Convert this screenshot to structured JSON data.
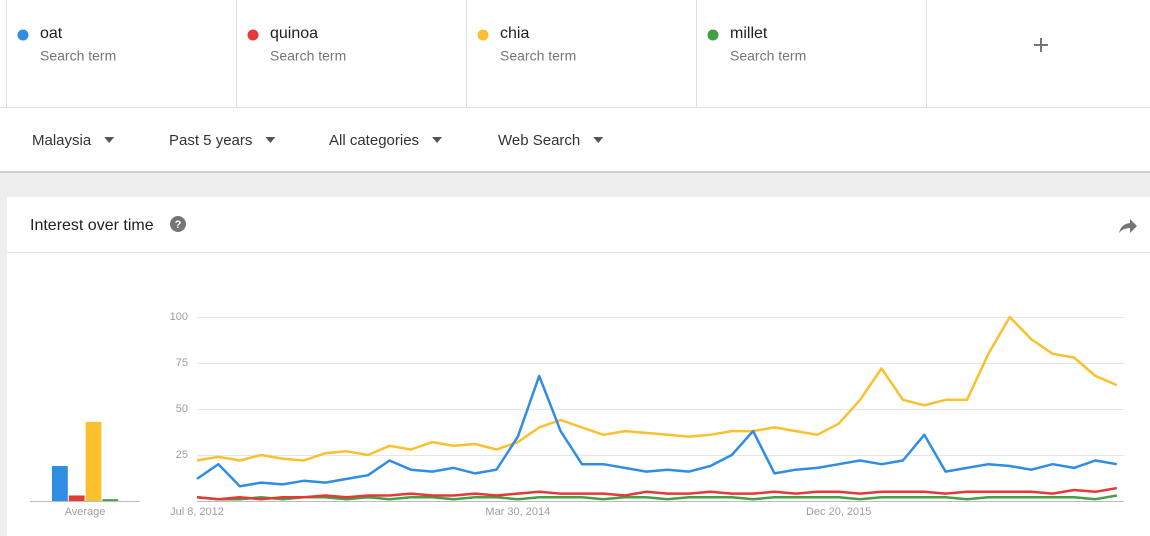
{
  "header": {
    "term_labels": [
      "Search term",
      "Search term",
      "Search term",
      "Search term"
    ]
  },
  "filters": [
    "Malaysia",
    "Past 5 years",
    "All categories",
    "Web Search"
  ],
  "card": {
    "title": "Interest over time"
  },
  "chart_data": [
    {
      "type": "bar",
      "categories": [
        "Average"
      ],
      "ylim": [
        0,
        100
      ],
      "series": [
        {
          "color": "#2f8de4",
          "values": [
            19
          ]
        },
        {
          "color": "#e53935",
          "values": [
            3
          ]
        },
        {
          "color": "#fbc02d",
          "values": [
            43
          ]
        },
        {
          "color": "#43a047",
          "values": [
            1
          ]
        }
      ]
    },
    {
      "type": "line",
      "categories": [
        "Jul 8, 2012",
        null,
        null,
        null,
        null,
        null,
        null,
        null,
        null,
        null,
        null,
        null,
        null,
        null,
        null,
        "Mar 30, 2014",
        null,
        null,
        null,
        null,
        null,
        null,
        null,
        null,
        null,
        null,
        null,
        null,
        null,
        null,
        "Dec 20, 2015",
        null,
        null,
        null,
        null,
        null,
        null,
        null,
        null,
        null,
        null,
        null,
        null,
        null
      ],
      "ylim": [
        0,
        100
      ],
      "yticks": [
        25,
        50,
        75,
        100
      ],
      "grid": true,
      "series": [
        {
          "name": "oat",
          "color": "#2f8de4",
          "values": [
            12,
            20,
            8,
            10,
            9,
            11,
            10,
            12,
            14,
            22,
            17,
            16,
            18,
            15,
            17,
            35,
            68,
            38,
            20,
            20,
            18,
            16,
            17,
            16,
            19,
            25,
            38,
            15,
            17,
            18,
            20,
            22,
            20,
            22,
            36,
            16,
            18,
            20,
            19,
            17,
            20,
            18,
            22,
            20
          ]
        },
        {
          "name": "quinoa",
          "color": "#e53935",
          "values": [
            2,
            1,
            2,
            1,
            2,
            2,
            3,
            2,
            3,
            3,
            4,
            3,
            3,
            4,
            3,
            4,
            5,
            4,
            4,
            4,
            3,
            5,
            4,
            4,
            5,
            4,
            4,
            5,
            4,
            5,
            5,
            4,
            5,
            5,
            5,
            4,
            5,
            5,
            5,
            5,
            4,
            6,
            5,
            7
          ]
        },
        {
          "name": "chia",
          "color": "#fbc02d",
          "values": [
            22,
            24,
            22,
            25,
            23,
            22,
            26,
            27,
            25,
            30,
            28,
            32,
            30,
            31,
            28,
            32,
            40,
            44,
            40,
            36,
            38,
            37,
            36,
            35,
            36,
            38,
            38,
            40,
            38,
            36,
            42,
            55,
            72,
            55,
            52,
            55,
            55,
            80,
            100,
            88,
            80,
            78,
            68,
            63
          ]
        },
        {
          "name": "millet",
          "color": "#43a047",
          "values": [
            2,
            1,
            1,
            2,
            1,
            2,
            2,
            1,
            2,
            1,
            2,
            2,
            1,
            2,
            2,
            1,
            2,
            2,
            2,
            1,
            2,
            2,
            1,
            2,
            2,
            2,
            1,
            2,
            2,
            2,
            2,
            1,
            2,
            2,
            2,
            2,
            1,
            2,
            2,
            2,
            2,
            2,
            1,
            3
          ]
        }
      ]
    }
  ]
}
